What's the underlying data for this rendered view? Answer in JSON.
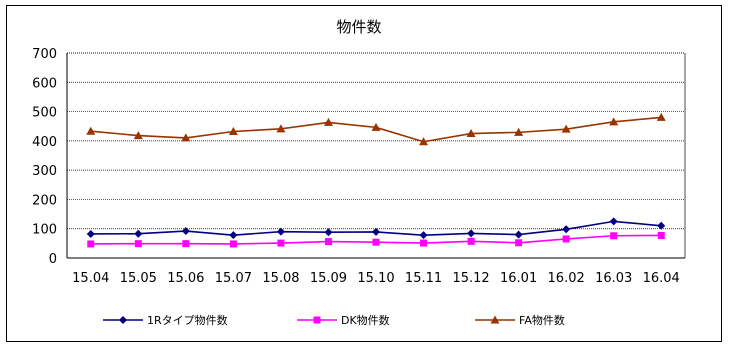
{
  "chart_data": {
    "type": "line",
    "title": "物件数",
    "xlabel": "",
    "ylabel": "",
    "categories": [
      "15.04",
      "15.05",
      "15.06",
      "15.07",
      "15.08",
      "15.09",
      "15.10",
      "15.11",
      "15.12",
      "16.01",
      "16.02",
      "16.03",
      "16.04"
    ],
    "yticks": [
      "0",
      "100",
      "200",
      "300",
      "400",
      "500",
      "600",
      "700"
    ],
    "ylim": [
      0,
      700
    ],
    "grid": true,
    "legend_position": "bottom",
    "series": [
      {
        "name": "1Rタイプ物件数",
        "color": "#000080",
        "marker": "diamond",
        "values": [
          82,
          83,
          92,
          78,
          90,
          88,
          89,
          78,
          84,
          80,
          98,
          125,
          110
        ]
      },
      {
        "name": "DK物件数",
        "color": "#ff00ff",
        "marker": "square",
        "values": [
          48,
          49,
          49,
          48,
          51,
          56,
          54,
          51,
          57,
          52,
          65,
          76,
          77
        ]
      },
      {
        "name": "FA物件数",
        "color": "#993300",
        "marker": "triangle",
        "values": [
          433,
          418,
          410,
          432,
          441,
          463,
          446,
          397,
          425,
          429,
          440,
          465,
          480
        ]
      }
    ]
  }
}
